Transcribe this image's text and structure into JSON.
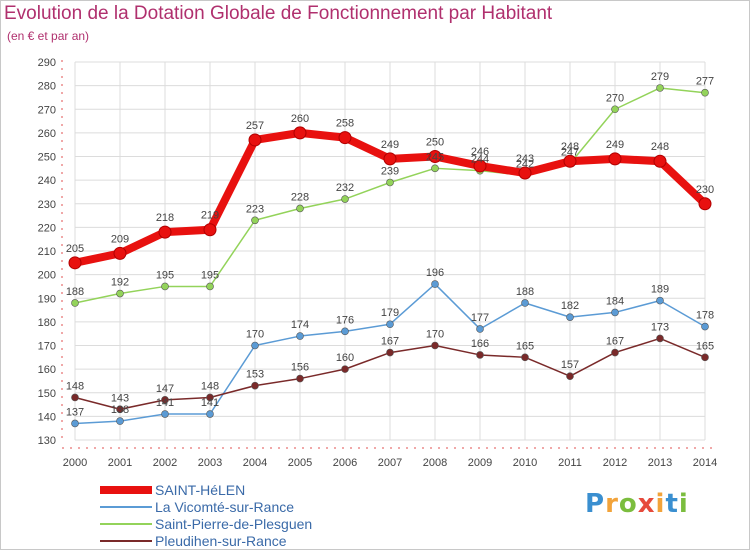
{
  "title": "Evolution de la Dotation Globale de Fonctionnement par Habitant",
  "subtitle": "(en € et par an)",
  "logo": "Proxiti",
  "chart_data": {
    "type": "line",
    "title": "Evolution de la Dotation Globale de Fonctionnement par Habitant",
    "subtitle": "(en € et par an)",
    "x": [
      "2000",
      "2001",
      "2002",
      "2003",
      "2004",
      "2005",
      "2006",
      "2007",
      "2008",
      "2009",
      "2010",
      "2011",
      "2012",
      "2013",
      "2014"
    ],
    "ylim": [
      130,
      290
    ],
    "yticks": [
      130,
      140,
      150,
      160,
      170,
      180,
      190,
      200,
      210,
      220,
      230,
      240,
      250,
      260,
      270,
      280,
      290
    ],
    "grid": true,
    "legend_position": "bottom-left",
    "series": [
      {
        "name": "SAINT-HéLEN",
        "color": "#e8110f",
        "values": [
          205,
          209,
          218,
          219,
          257,
          260,
          258,
          249,
          250,
          246,
          243,
          248,
          249,
          248,
          230
        ]
      },
      {
        "name": "La Vicomté-sur-Rance",
        "color": "#5b9bd5",
        "values": [
          137,
          138,
          141,
          141,
          170,
          174,
          176,
          179,
          196,
          177,
          188,
          182,
          184,
          189,
          178
        ]
      },
      {
        "name": "Saint-Pierre-de-Plesguen",
        "color": "#93d35a",
        "values": [
          188,
          192,
          195,
          195,
          223,
          228,
          232,
          239,
          245,
          244,
          242,
          247,
          270,
          279,
          277
        ]
      },
      {
        "name": "Pleudihen-sur-Rance",
        "color": "#7a2a2a",
        "values": [
          148,
          143,
          147,
          148,
          153,
          156,
          160,
          167,
          170,
          166,
          165,
          157,
          167,
          173,
          165
        ]
      }
    ]
  }
}
